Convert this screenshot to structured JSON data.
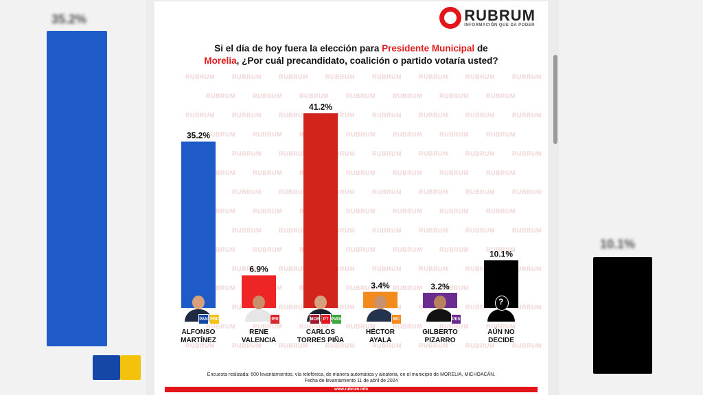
{
  "logo": {
    "name": "RUBRUM",
    "tagline": "INFORMACIÓN QUE DA PODER"
  },
  "question": {
    "part1": "Si el día de hoy fuera la elección para ",
    "highlight1": "Presidente Municipal",
    "part2": " de",
    "highlight2": "Morelia",
    "part3": ", ¿Por cuál precandidato, coalición o partido votaría usted?"
  },
  "watermark_text": "RUBRUM",
  "chart_data": {
    "type": "bar",
    "categories": [
      "ALFONSO MARTÍNEZ",
      "RENE VALENCIA",
      "CARLOS TORRES PIÑA",
      "HÉCTOR AYALA",
      "GILBERTO PIZARRO",
      "AÚN NO DECIDE"
    ],
    "values": [
      35.2,
      6.9,
      41.2,
      3.4,
      3.2,
      10.1
    ],
    "value_labels": [
      "35.2%",
      "6.9%",
      "41.2%",
      "3.4%",
      "3.2%",
      "10.1%"
    ],
    "colors": [
      "#1f5bc8",
      "#ef2424",
      "#d3241c",
      "#f28a1e",
      "#6a2c8e",
      "#000000"
    ],
    "ylim": [
      0,
      45
    ]
  },
  "candidates": [
    {
      "name_line1": "ALFONSO",
      "name_line2": "MARTÍNEZ",
      "parties": [
        {
          "label": "PAN",
          "color": "#1547a8"
        },
        {
          "label": "PRD",
          "color": "#f4c20d"
        }
      ]
    },
    {
      "name_line1": "RENE",
      "name_line2": "VALENCIA",
      "parties": [
        {
          "label": "PRI",
          "color": "#d7262b"
        }
      ]
    },
    {
      "name_line1": "CARLOS",
      "name_line2": "TORRES PIÑA",
      "parties": [
        {
          "label": "MOR",
          "color": "#a1182b"
        },
        {
          "label": "PT",
          "color": "#e3161e"
        },
        {
          "label": "PVEM",
          "color": "#3da639"
        }
      ]
    },
    {
      "name_line1": "HÉCTOR",
      "name_line2": "AYALA",
      "parties": [
        {
          "label": "MC",
          "color": "#f28a1e"
        }
      ]
    },
    {
      "name_line1": "GILBERTO",
      "name_line2": "PIZARRO",
      "parties": [
        {
          "label": "PES",
          "color": "#6a2c8e"
        }
      ]
    },
    {
      "name_line1": "AÚN NO",
      "name_line2": "DECIDE",
      "parties": []
    }
  ],
  "footer": {
    "line1": "Encuesta realizada: 600 levantamientos, vía telefónica, de manera automática y aleatoria, en el municipio de MORELIA, MICHOACÁN.",
    "line2": "Fecha de levantamiento 11 de abril de 2024",
    "url": "www.rubrum.info"
  },
  "background": {
    "left_value": "35.2%",
    "right_value": "10.1%"
  }
}
